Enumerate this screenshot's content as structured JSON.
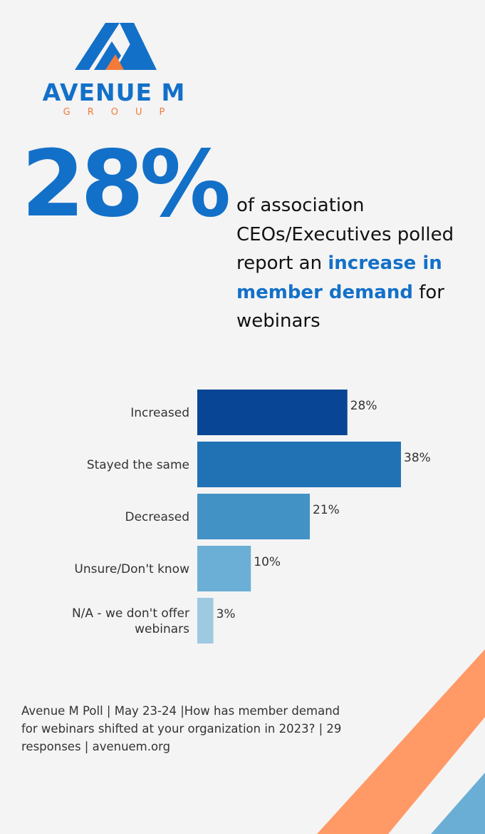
{
  "brand": {
    "name": "AVENUE M",
    "sub": "GROUP",
    "blue": "#1370c8",
    "orange": "#f47a3a"
  },
  "headline": {
    "stat": "28%",
    "text_before": "of association CEOs/Executives polled report an",
    "highlight": "increase in member demand",
    "text_after": "for webinars"
  },
  "chart_data": {
    "type": "bar",
    "orientation": "horizontal",
    "categories": [
      "Increased",
      "Stayed the same",
      "Decreased",
      "Unsure/Don't know",
      "N/A - we don't offer webinars"
    ],
    "values": [
      28,
      38,
      21,
      10,
      3
    ],
    "value_labels": [
      "28%",
      "38%",
      "21%",
      "10%",
      "3%"
    ],
    "colors": [
      "#084594",
      "#2171b5",
      "#4292c6",
      "#6baed6",
      "#9ecae1"
    ],
    "xlim": [
      0,
      38
    ],
    "grid": false,
    "legend": "none"
  },
  "footnote": "Avenue M Poll | May 23-24 |How has member demand for webinars shifted at your organization in 2023? | 29 responses | avenuem.org",
  "decor": {
    "stripe_orange": "#ff9966",
    "stripe_blue": "#6aaed6"
  }
}
